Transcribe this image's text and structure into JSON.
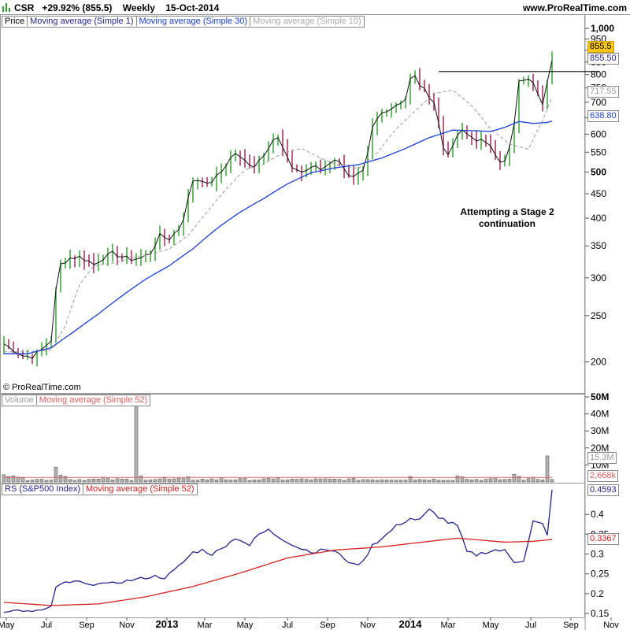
{
  "header": {
    "symbol": "CSR",
    "change": "+29.92% (855.5)",
    "period": "Weekly",
    "date": "15-Oct-2014",
    "site": "www.ProRealTime.com"
  },
  "footer": {
    "copyright": "© ProRealTime.com"
  },
  "colors": {
    "up": "#2a9d2a",
    "down": "#9b1c4e",
    "ma1": "#23238e",
    "ma10": "#999999",
    "ma30": "#1a3fd9",
    "rs": "#23238e",
    "rs_ma": "#d62020",
    "vol_ma": "#e06060",
    "last_label": "#f5c518"
  },
  "x_axis": {
    "labels": [
      {
        "t": 0.5,
        "text": "May"
      },
      {
        "t": 9,
        "text": "Jul"
      },
      {
        "t": 17.5,
        "text": "Sep"
      },
      {
        "t": 26,
        "text": "Nov"
      },
      {
        "t": 34.5,
        "text": "2013",
        "bold": true
      },
      {
        "t": 42.5,
        "text": "Mar"
      },
      {
        "t": 51,
        "text": "May"
      },
      {
        "t": 60,
        "text": "Jul"
      },
      {
        "t": 68.5,
        "text": "Sep"
      },
      {
        "t": 77,
        "text": "Nov"
      },
      {
        "t": 86,
        "text": "2014",
        "bold": true
      },
      {
        "t": 94,
        "text": "Mar"
      },
      {
        "t": 103,
        "text": "May"
      },
      {
        "t": 111.5,
        "text": "Jul"
      },
      {
        "t": 120,
        "text": "Sep"
      },
      {
        "t": 128.5,
        "text": "Nov"
      }
    ]
  },
  "chart_data": [
    {
      "type": "candlestick",
      "panel": "price",
      "legend": [
        "Price",
        "Moving average (Simple 1)",
        "Moving average (Simple 30)",
        "Moving average (Simple 10)"
      ],
      "scale": "log",
      "ylim": [
        185,
        1000
      ],
      "yticks": [
        {
          "v": 1000,
          "text": "1,000",
          "bold": true
        },
        {
          "v": 950,
          "text": "950"
        },
        {
          "v": 900,
          "text": "900"
        },
        {
          "v": 850,
          "text": "850"
        },
        {
          "v": 800,
          "text": "800"
        },
        {
          "v": 750,
          "text": "750"
        },
        {
          "v": 700,
          "text": "700"
        },
        {
          "v": 650,
          "text": "650"
        },
        {
          "v": 600,
          "text": "600"
        },
        {
          "v": 550,
          "text": "550"
        },
        {
          "v": 500,
          "text": "500",
          "bold": true
        },
        {
          "v": 450,
          "text": "450"
        },
        {
          "v": 400,
          "text": "400"
        },
        {
          "v": 350,
          "text": "350"
        },
        {
          "v": 300,
          "text": "300"
        },
        {
          "v": 250,
          "text": "250"
        },
        {
          "v": 200,
          "text": "200"
        }
      ],
      "labels": {
        "last": "855.5",
        "ma1": "855.50",
        "ma10": "717.55",
        "ma30": "638.80"
      },
      "resistance": {
        "value": 812,
        "from_t": 92,
        "to_t": 126
      },
      "annotation": [
        "Attempting a Stage 2",
        "continuation"
      ],
      "anchors": [
        [
          0,
          218
        ],
        [
          2,
          212
        ],
        [
          4,
          206
        ],
        [
          6,
          205
        ],
        [
          8,
          212
        ],
        [
          10,
          222
        ],
        [
          11,
          282
        ],
        [
          12,
          320
        ],
        [
          14,
          330
        ],
        [
          16,
          332
        ],
        [
          18,
          325
        ],
        [
          19,
          320
        ],
        [
          21,
          330
        ],
        [
          23,
          338
        ],
        [
          25,
          332
        ],
        [
          27,
          328
        ],
        [
          29,
          330
        ],
        [
          31,
          338
        ],
        [
          32,
          352
        ],
        [
          33,
          368
        ],
        [
          35,
          362
        ],
        [
          37,
          380
        ],
        [
          38,
          400
        ],
        [
          39,
          440
        ],
        [
          40,
          480
        ],
        [
          42,
          482
        ],
        [
          43,
          470
        ],
        [
          44,
          478
        ],
        [
          46,
          500
        ],
        [
          48,
          535
        ],
        [
          49,
          548
        ],
        [
          50,
          535
        ],
        [
          52,
          520
        ],
        [
          53,
          515
        ],
        [
          55,
          545
        ],
        [
          57,
          585
        ],
        [
          58,
          588
        ],
        [
          59,
          562
        ],
        [
          60,
          532
        ],
        [
          61,
          512
        ],
        [
          63,
          500
        ],
        [
          65,
          508
        ],
        [
          66,
          516
        ],
        [
          67,
          506
        ],
        [
          69,
          524
        ],
        [
          71,
          530
        ],
        [
          72,
          510
        ],
        [
          73,
          488
        ],
        [
          74,
          486
        ],
        [
          76,
          500
        ],
        [
          77,
          545
        ],
        [
          78,
          618
        ],
        [
          79,
          645
        ],
        [
          80,
          665
        ],
        [
          81,
          675
        ],
        [
          82,
          680
        ],
        [
          83,
          692
        ],
        [
          84,
          700
        ],
        [
          85,
          712
        ],
        [
          86,
          782
        ],
        [
          87,
          792
        ],
        [
          88,
          762
        ],
        [
          89,
          742
        ],
        [
          90,
          722
        ],
        [
          91,
          702
        ],
        [
          92,
          632
        ],
        [
          93,
          562
        ],
        [
          94,
          548
        ],
        [
          95,
          562
        ],
        [
          96,
          598
        ],
        [
          97,
          608
        ],
        [
          98,
          600
        ],
        [
          99,
          592
        ],
        [
          100,
          585
        ],
        [
          101,
          582
        ],
        [
          102,
          572
        ],
        [
          103,
          570
        ],
        [
          104,
          548
        ],
        [
          105,
          528
        ],
        [
          106,
          525
        ],
        [
          107,
          562
        ],
        [
          108,
          630
        ],
        [
          109,
          770
        ],
        [
          110,
          782
        ],
        [
          111,
          778
        ],
        [
          112,
          775
        ],
        [
          113,
          735
        ],
        [
          114,
          698
        ],
        [
          115,
          780
        ],
        [
          116,
          855.5
        ]
      ],
      "ma30_anchors": [
        [
          0,
          208
        ],
        [
          5,
          208
        ],
        [
          10,
          214
        ],
        [
          15,
          232
        ],
        [
          20,
          252
        ],
        [
          25,
          275
        ],
        [
          30,
          298
        ],
        [
          35,
          318
        ],
        [
          40,
          345
        ],
        [
          45,
          380
        ],
        [
          50,
          412
        ],
        [
          55,
          440
        ],
        [
          60,
          472
        ],
        [
          65,
          498
        ],
        [
          70,
          510
        ],
        [
          75,
          518
        ],
        [
          80,
          535
        ],
        [
          85,
          560
        ],
        [
          90,
          590
        ],
        [
          95,
          612
        ],
        [
          100,
          610
        ],
        [
          103,
          608
        ],
        [
          106,
          620
        ],
        [
          109,
          638
        ],
        [
          112,
          632
        ],
        [
          115,
          635
        ],
        [
          116,
          638.8
        ]
      ],
      "ma10_anchors": [
        [
          0,
          210
        ],
        [
          5,
          210
        ],
        [
          10,
          212
        ],
        [
          13,
          238
        ],
        [
          16,
          290
        ],
        [
          19,
          318
        ],
        [
          23,
          322
        ],
        [
          27,
          330
        ],
        [
          31,
          336
        ],
        [
          35,
          345
        ],
        [
          39,
          368
        ],
        [
          43,
          412
        ],
        [
          47,
          460
        ],
        [
          51,
          505
        ],
        [
          55,
          520
        ],
        [
          59,
          548
        ],
        [
          63,
          560
        ],
        [
          67,
          535
        ],
        [
          71,
          515
        ],
        [
          75,
          508
        ],
        [
          79,
          548
        ],
        [
          83,
          615
        ],
        [
          87,
          670
        ],
        [
          91,
          730
        ],
        [
          95,
          742
        ],
        [
          99,
          688
        ],
        [
          103,
          615
        ],
        [
          107,
          572
        ],
        [
          111,
          558
        ],
        [
          114,
          640
        ],
        [
          116,
          717.55
        ]
      ]
    },
    {
      "type": "bar",
      "panel": "volume",
      "legend": [
        "Volume",
        "Moving average (Simple 52)"
      ],
      "ylim": [
        0,
        50
      ],
      "unit": "M",
      "yticks": [
        {
          "v": 50,
          "text": "50M",
          "bold": true
        },
        {
          "v": 40,
          "text": "40M"
        },
        {
          "v": 30,
          "text": "30M"
        },
        {
          "v": 20,
          "text": "20M"
        },
        {
          "v": 10,
          "text": "10M"
        }
      ],
      "labels": {
        "volume": "15.3M",
        "ma": "2,668k"
      },
      "spikes": [
        [
          0,
          4.2
        ],
        [
          1,
          3.1
        ],
        [
          2,
          3.6
        ],
        [
          3,
          2.8
        ],
        [
          4,
          2.5
        ],
        [
          11,
          8.6
        ],
        [
          12,
          4.0
        ],
        [
          13,
          3.2
        ],
        [
          21,
          2.8
        ],
        [
          28,
          50
        ],
        [
          29,
          3.5
        ],
        [
          34,
          2.8
        ],
        [
          39,
          3.0
        ],
        [
          46,
          2.6
        ],
        [
          58,
          2.5
        ],
        [
          86,
          3.2
        ],
        [
          96,
          3.5
        ],
        [
          97,
          3.0
        ],
        [
          108,
          4.5
        ],
        [
          109,
          3.2
        ],
        [
          112,
          2.8
        ],
        [
          115,
          15.3
        ]
      ],
      "base_volume": 1.4,
      "ma_value": 2.668
    },
    {
      "type": "line",
      "panel": "rs",
      "legend": [
        "RS (S&P500 Index)",
        "Moving average (Simple 52)"
      ],
      "ylim": [
        0.14,
        0.47
      ],
      "yticks": [
        {
          "v": 0.4,
          "text": "0.4"
        },
        {
          "v": 0.35,
          "text": "0.35"
        },
        {
          "v": 0.3,
          "text": "0.3"
        },
        {
          "v": 0.25,
          "text": "0.25"
        },
        {
          "v": 0.2,
          "text": "0.2"
        },
        {
          "v": 0.15,
          "text": "0.15"
        }
      ],
      "labels": {
        "rs": "0.4593",
        "ma": "0.3367"
      },
      "rs_anchors": [
        [
          0,
          0.155
        ],
        [
          3,
          0.158
        ],
        [
          6,
          0.154
        ],
        [
          9,
          0.162
        ],
        [
          10,
          0.168
        ],
        [
          11,
          0.215
        ],
        [
          13,
          0.228
        ],
        [
          16,
          0.23
        ],
        [
          18,
          0.22
        ],
        [
          20,
          0.228
        ],
        [
          22,
          0.224
        ],
        [
          24,
          0.228
        ],
        [
          26,
          0.232
        ],
        [
          28,
          0.236
        ],
        [
          30,
          0.24
        ],
        [
          32,
          0.244
        ],
        [
          34,
          0.24
        ],
        [
          36,
          0.258
        ],
        [
          38,
          0.28
        ],
        [
          40,
          0.304
        ],
        [
          42,
          0.31
        ],
        [
          44,
          0.3
        ],
        [
          46,
          0.312
        ],
        [
          48,
          0.335
        ],
        [
          50,
          0.338
        ],
        [
          52,
          0.322
        ],
        [
          54,
          0.35
        ],
        [
          56,
          0.36
        ],
        [
          58,
          0.345
        ],
        [
          60,
          0.332
        ],
        [
          62,
          0.318
        ],
        [
          64,
          0.31
        ],
        [
          66,
          0.305
        ],
        [
          68,
          0.312
        ],
        [
          70,
          0.306
        ],
        [
          72,
          0.29
        ],
        [
          74,
          0.272
        ],
        [
          76,
          0.28
        ],
        [
          78,
          0.325
        ],
        [
          80,
          0.338
        ],
        [
          82,
          0.36
        ],
        [
          84,
          0.378
        ],
        [
          86,
          0.39
        ],
        [
          88,
          0.385
        ],
        [
          90,
          0.41
        ],
        [
          92,
          0.395
        ],
        [
          94,
          0.38
        ],
        [
          96,
          0.37
        ],
        [
          98,
          0.305
        ],
        [
          100,
          0.298
        ],
        [
          102,
          0.305
        ],
        [
          104,
          0.31
        ],
        [
          106,
          0.308
        ],
        [
          108,
          0.28
        ],
        [
          110,
          0.285
        ],
        [
          112,
          0.382
        ],
        [
          114,
          0.374
        ],
        [
          115,
          0.345
        ],
        [
          116,
          0.4593
        ]
      ],
      "ma_anchors": [
        [
          0,
          0.178
        ],
        [
          10,
          0.17
        ],
        [
          20,
          0.174
        ],
        [
          30,
          0.192
        ],
        [
          40,
          0.218
        ],
        [
          50,
          0.252
        ],
        [
          60,
          0.29
        ],
        [
          70,
          0.31
        ],
        [
          80,
          0.318
        ],
        [
          90,
          0.332
        ],
        [
          96,
          0.34
        ],
        [
          100,
          0.336
        ],
        [
          106,
          0.33
        ],
        [
          112,
          0.332
        ],
        [
          116,
          0.3367
        ]
      ]
    }
  ]
}
